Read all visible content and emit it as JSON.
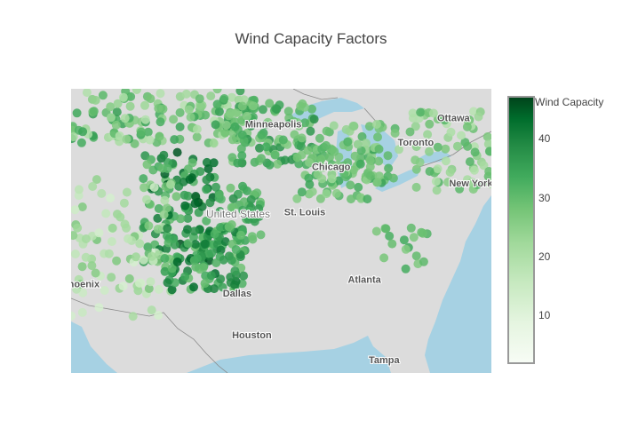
{
  "title": "Wind Capacity Factors",
  "map": {
    "water_color": "#a6d1e3",
    "land_color": "#dcdcdc",
    "country_label": "United States",
    "cities": [
      {
        "name": "Minneapolis",
        "lon": -93.27,
        "lat": 44.98
      },
      {
        "name": "Chicago",
        "lon": -87.63,
        "lat": 41.88
      },
      {
        "name": "St. Louis",
        "lon": -90.2,
        "lat": 38.63
      },
      {
        "name": "Ottawa",
        "lon": -75.7,
        "lat": 45.42
      },
      {
        "name": "Toronto",
        "lon": -79.38,
        "lat": 43.65
      },
      {
        "name": "New York",
        "lon": -74.0,
        "lat": 40.71
      },
      {
        "name": "Phoenix",
        "lon": -112.07,
        "lat": 33.45
      },
      {
        "name": "Dallas",
        "lon": -96.8,
        "lat": 32.78
      },
      {
        "name": "Atlanta",
        "lon": -84.39,
        "lat": 33.75
      },
      {
        "name": "Houston",
        "lon": -95.37,
        "lat": 29.76
      },
      {
        "name": "Tampa",
        "lon": -82.46,
        "lat": 27.95
      }
    ]
  },
  "chart_data": {
    "type": "scatter_geo",
    "title": "Wind Capacity Factors",
    "lon_range": [
      -113,
      -72
    ],
    "lat_range": [
      27.0,
      47.5
    ],
    "series": [
      {
        "name": "Wind Capacity",
        "colorscale": "Greens",
        "cmin": 2,
        "cmax": 47,
        "clusters": [
          {
            "region": "northern-plains",
            "lon": [
              -113,
              -95
            ],
            "lat": [
              43.5,
              47.5
            ],
            "count": 150,
            "value_range": [
              18,
              36
            ]
          },
          {
            "region": "western-plains",
            "lon": [
              -106,
              -99
            ],
            "lat": [
              35,
              43
            ],
            "count": 110,
            "value_range": [
              28,
              46
            ]
          },
          {
            "region": "southwest",
            "lon": [
              -113,
              -103
            ],
            "lat": [
              31,
              41
            ],
            "count": 90,
            "value_range": [
              12,
              28
            ]
          },
          {
            "region": "upper-midwest",
            "lon": [
              -98,
              -89
            ],
            "lat": [
              42,
              46.5
            ],
            "count": 110,
            "value_range": [
              25,
              38
            ]
          },
          {
            "region": "iowa-illinois",
            "lon": [
              -91,
              -82
            ],
            "lat": [
              39.5,
              43.5
            ],
            "count": 70,
            "value_range": [
              24,
              35
            ]
          },
          {
            "region": "southern-plains",
            "lon": [
              -104,
              -96
            ],
            "lat": [
              33,
              37.5
            ],
            "count": 110,
            "value_range": [
              28,
              44
            ]
          },
          {
            "region": "kansas",
            "lon": [
              -99,
              -94
            ],
            "lat": [
              36.5,
              40.5
            ],
            "count": 50,
            "value_range": [
              28,
              38
            ]
          },
          {
            "region": "great-lakes",
            "lon": [
              -89,
              -81
            ],
            "lat": [
              41,
              45
            ],
            "count": 50,
            "value_range": [
              22,
              32
            ]
          },
          {
            "region": "northeast",
            "lon": [
              -80,
              -72
            ],
            "lat": [
              40,
              46
            ],
            "count": 70,
            "value_range": [
              18,
              32
            ]
          },
          {
            "region": "appalachia",
            "lon": [
              -84,
              -78
            ],
            "lat": [
              34.5,
              37.5
            ],
            "count": 18,
            "value_range": [
              26,
              34
            ]
          }
        ]
      }
    ],
    "colorbar": {
      "title": "Wind Capacity",
      "ticks": [
        10,
        20,
        30,
        40
      ]
    }
  }
}
